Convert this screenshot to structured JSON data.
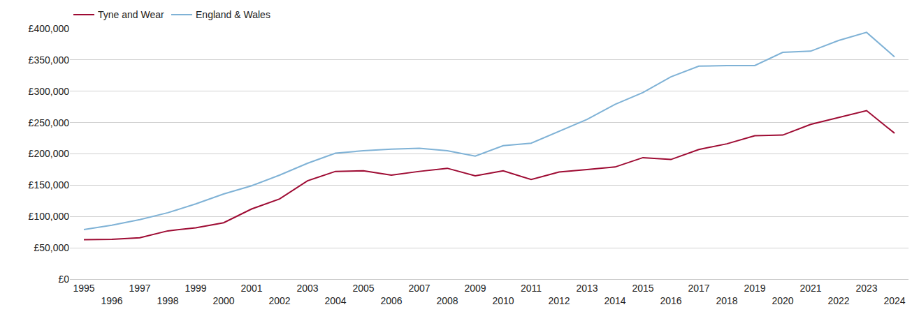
{
  "chart_data": {
    "type": "line",
    "x": [
      1995,
      1996,
      1997,
      1998,
      1999,
      2000,
      2001,
      2002,
      2003,
      2004,
      2005,
      2006,
      2007,
      2008,
      2009,
      2010,
      2011,
      2012,
      2013,
      2014,
      2015,
      2016,
      2017,
      2018,
      2019,
      2020,
      2021,
      2022,
      2023,
      2024
    ],
    "series": [
      {
        "name": "Tyne and Wear",
        "color": "#9e0b33",
        "values": [
          63000,
          63500,
          66000,
          77000,
          82000,
          90000,
          112000,
          128000,
          157000,
          172000,
          173000,
          166000,
          172000,
          177000,
          165000,
          173000,
          159000,
          171000,
          175000,
          179000,
          194000,
          191000,
          207000,
          216000,
          229000,
          230000,
          247000,
          258000,
          269000,
          233000
        ]
      },
      {
        "name": "England & Wales",
        "color": "#7fb2d6",
        "values": [
          79000,
          86000,
          95000,
          106000,
          120000,
          136000,
          149000,
          166000,
          185000,
          201000,
          205000,
          207500,
          209000,
          205000,
          196500,
          213000,
          217000,
          236000,
          255000,
          279000,
          298000,
          323000,
          340000,
          341000,
          341000,
          362000,
          364000,
          381000,
          394000,
          355000
        ]
      }
    ],
    "xlim": [
      1994.5,
      2024.5
    ],
    "xticks": [
      1995,
      1996,
      1997,
      1998,
      1999,
      2000,
      2001,
      2002,
      2003,
      2004,
      2005,
      2006,
      2007,
      2008,
      2009,
      2010,
      2011,
      2012,
      2013,
      2014,
      2015,
      2016,
      2017,
      2018,
      2019,
      2020,
      2021,
      2022,
      2023,
      2024
    ],
    "ylim": [
      0,
      400000
    ],
    "yticks": [
      {
        "value": 0,
        "label": "£0"
      },
      {
        "value": 50000,
        "label": "£50,000"
      },
      {
        "value": 100000,
        "label": "£100,000"
      },
      {
        "value": 150000,
        "label": "£150,000"
      },
      {
        "value": 200000,
        "label": "£200,000"
      },
      {
        "value": 250000,
        "label": "£250,000"
      },
      {
        "value": 300000,
        "label": "£300,000"
      },
      {
        "value": 350000,
        "label": "£350,000"
      },
      {
        "value": 400000,
        "label": "£400,000"
      }
    ],
    "grid": true,
    "legend": "top left"
  }
}
